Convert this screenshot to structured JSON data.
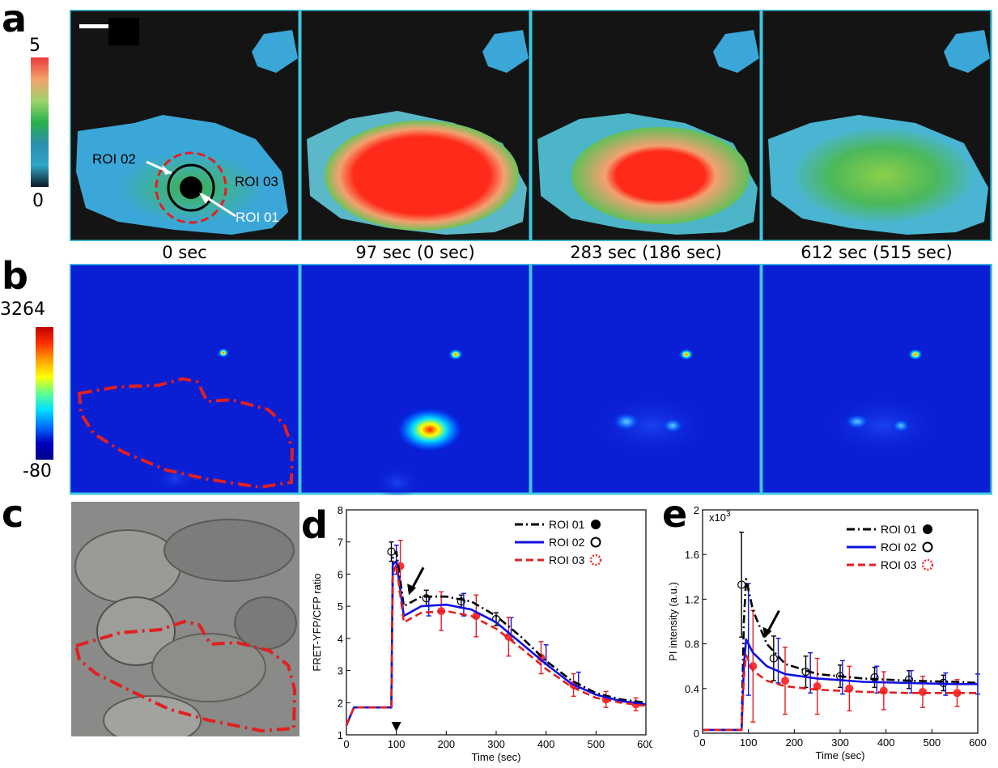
{
  "panels": {
    "a": {
      "letter": "a",
      "colorbar_max": "5",
      "colorbar_min": "0",
      "roi_labels": [
        "ROI 02",
        "ROI 03",
        "ROI 01"
      ],
      "time_labels": [
        "0 sec",
        "97 sec (0 sec)",
        "283 sec (186 sec)",
        "612 sec (515 sec)"
      ]
    },
    "b": {
      "letter": "b",
      "colorbar_max": "3264",
      "colorbar_min": "-80"
    },
    "c": {
      "letter": "c"
    },
    "d": {
      "letter": "d"
    },
    "e": {
      "letter": "e"
    }
  },
  "colors": {
    "frame_cyan": "#3fc8e0",
    "roi01": "#000000",
    "roi02": "#1010e0",
    "roi03": "#e02020"
  },
  "chart_data": [
    {
      "id": "d",
      "type": "line",
      "xlabel": "Time (sec)",
      "ylabel": "FRET-YFP/CFP ratio",
      "xlim": [
        0,
        600
      ],
      "ylim": [
        1,
        8
      ],
      "xticks": [
        "0",
        "100",
        "200",
        "300",
        "400",
        "500",
        "600"
      ],
      "yticks": [
        "1",
        "2",
        "3",
        "4",
        "5",
        "6",
        "7",
        "8"
      ],
      "legend_position": "top-right",
      "series": [
        {
          "name": "ROI 01",
          "style": "dash-dot",
          "color": "#000000",
          "marker": "filled-circle",
          "x": [
            0,
            15,
            90,
            93,
            100,
            115,
            150,
            200,
            250,
            300,
            350,
            400,
            450,
            500,
            550,
            600
          ],
          "y": [
            1.3,
            1.85,
            1.85,
            6.5,
            6.7,
            5.0,
            5.3,
            5.3,
            5.15,
            4.7,
            4.05,
            3.3,
            2.7,
            2.3,
            2.1,
            2.0
          ]
        },
        {
          "name": "ROI 02",
          "style": "solid",
          "color": "#1010e0",
          "marker": "open-circle",
          "x": [
            0,
            15,
            90,
            93,
            100,
            115,
            150,
            200,
            250,
            300,
            350,
            400,
            450,
            500,
            550,
            600
          ],
          "y": [
            1.3,
            1.85,
            1.85,
            6.3,
            6.4,
            4.7,
            5.0,
            5.05,
            4.9,
            4.5,
            3.85,
            3.2,
            2.6,
            2.25,
            2.05,
            1.95
          ]
        },
        {
          "name": "ROI 03",
          "style": "dashed",
          "color": "#e02020",
          "marker": "dotted-circle",
          "x": [
            0,
            15,
            90,
            93,
            100,
            115,
            150,
            200,
            250,
            300,
            350,
            400,
            450,
            500,
            550,
            600
          ],
          "y": [
            1.3,
            1.85,
            1.85,
            6.0,
            6.3,
            4.5,
            4.8,
            4.85,
            4.7,
            4.3,
            3.7,
            3.05,
            2.5,
            2.15,
            2.0,
            1.9
          ]
        }
      ],
      "error_points": [
        {
          "series": "ROI 01",
          "x": [
            90,
            160,
            230,
            300
          ],
          "y": [
            6.7,
            5.25,
            5.15,
            4.6
          ],
          "err": [
            0.3,
            0.25,
            0.2,
            0.2
          ]
        },
        {
          "series": "ROI 02",
          "x": [
            100,
            165,
            235,
            330,
            400,
            465
          ],
          "y": [
            6.45,
            5.0,
            5.05,
            4.3,
            3.5,
            2.7
          ],
          "err": [
            0.45,
            0.3,
            0.35,
            0.35,
            0.3,
            0.25
          ]
        },
        {
          "series": "ROI 03",
          "x": [
            108,
            190,
            260,
            325,
            390,
            455,
            520,
            580
          ],
          "y": [
            6.25,
            4.85,
            4.7,
            4.05,
            3.4,
            2.55,
            2.1,
            1.95
          ],
          "err": [
            0.8,
            0.6,
            0.65,
            0.6,
            0.5,
            0.35,
            0.25,
            0.2
          ]
        }
      ],
      "annotations": [
        {
          "type": "arrow",
          "x": 125,
          "y": 5.35
        },
        {
          "type": "triangle",
          "x": 100,
          "y": 1.2
        }
      ]
    },
    {
      "id": "e",
      "type": "line",
      "xlabel": "Time (sec)",
      "ylabel": "PI intensity (a.u.)",
      "y_multiplier": "x10",
      "y_multiplier_exp": "3",
      "xlim": [
        0,
        600
      ],
      "ylim": [
        0,
        2
      ],
      "xticks": [
        "0",
        "100",
        "200",
        "300",
        "400",
        "500",
        "600"
      ],
      "yticks": [
        "0",
        "0.4",
        "0.8",
        "1.2",
        "1.6",
        "2"
      ],
      "legend_position": "top-right",
      "series": [
        {
          "name": "ROI 01",
          "style": "dash-dot",
          "color": "#000000",
          "marker": "filled-circle",
          "x": [
            0,
            85,
            90,
            95,
            110,
            140,
            180,
            250,
            350,
            450,
            550,
            600
          ],
          "y": [
            0.03,
            0.03,
            1.0,
            1.38,
            1.1,
            0.8,
            0.62,
            0.53,
            0.49,
            0.47,
            0.46,
            0.45
          ]
        },
        {
          "name": "ROI 02",
          "style": "solid",
          "color": "#1010e0",
          "marker": "open-circle",
          "x": [
            0,
            85,
            90,
            95,
            110,
            140,
            180,
            250,
            350,
            450,
            550,
            600
          ],
          "y": [
            0.03,
            0.03,
            0.6,
            0.84,
            0.72,
            0.6,
            0.53,
            0.49,
            0.46,
            0.45,
            0.44,
            0.44
          ]
        },
        {
          "name": "ROI 03",
          "style": "dashed",
          "color": "#e02020",
          "marker": "dotted-circle",
          "x": [
            0,
            85,
            90,
            95,
            110,
            140,
            180,
            250,
            350,
            450,
            550,
            600
          ],
          "y": [
            0.03,
            0.03,
            0.5,
            0.7,
            0.56,
            0.47,
            0.42,
            0.39,
            0.37,
            0.36,
            0.36,
            0.36
          ]
        }
      ],
      "error_points": [
        {
          "series": "ROI 01",
          "x": [
            85,
            155,
            225,
            300,
            375,
            450,
            525
          ],
          "y": [
            1.33,
            0.67,
            0.55,
            0.51,
            0.5,
            0.48,
            0.45
          ],
          "err": [
            0.47,
            0.2,
            0.14,
            0.1,
            0.09,
            0.08,
            0.07
          ]
        },
        {
          "series": "ROI 02",
          "x": [
            100,
            165,
            235,
            305,
            380,
            455,
            530,
            600
          ],
          "y": [
            0.84,
            0.65,
            0.54,
            0.5,
            0.48,
            0.46,
            0.44,
            0.44
          ],
          "err": [
            0.5,
            0.2,
            0.18,
            0.15,
            0.12,
            0.1,
            0.1,
            0.09
          ]
        },
        {
          "series": "ROI 03",
          "x": [
            110,
            180,
            250,
            320,
            395,
            480,
            555
          ],
          "y": [
            0.6,
            0.47,
            0.42,
            0.4,
            0.38,
            0.37,
            0.36
          ],
          "err": [
            0.5,
            0.3,
            0.25,
            0.2,
            0.17,
            0.14,
            0.12
          ]
        }
      ],
      "annotations": [
        {
          "type": "arrow",
          "x": 135,
          "y": 0.85
        }
      ]
    }
  ]
}
